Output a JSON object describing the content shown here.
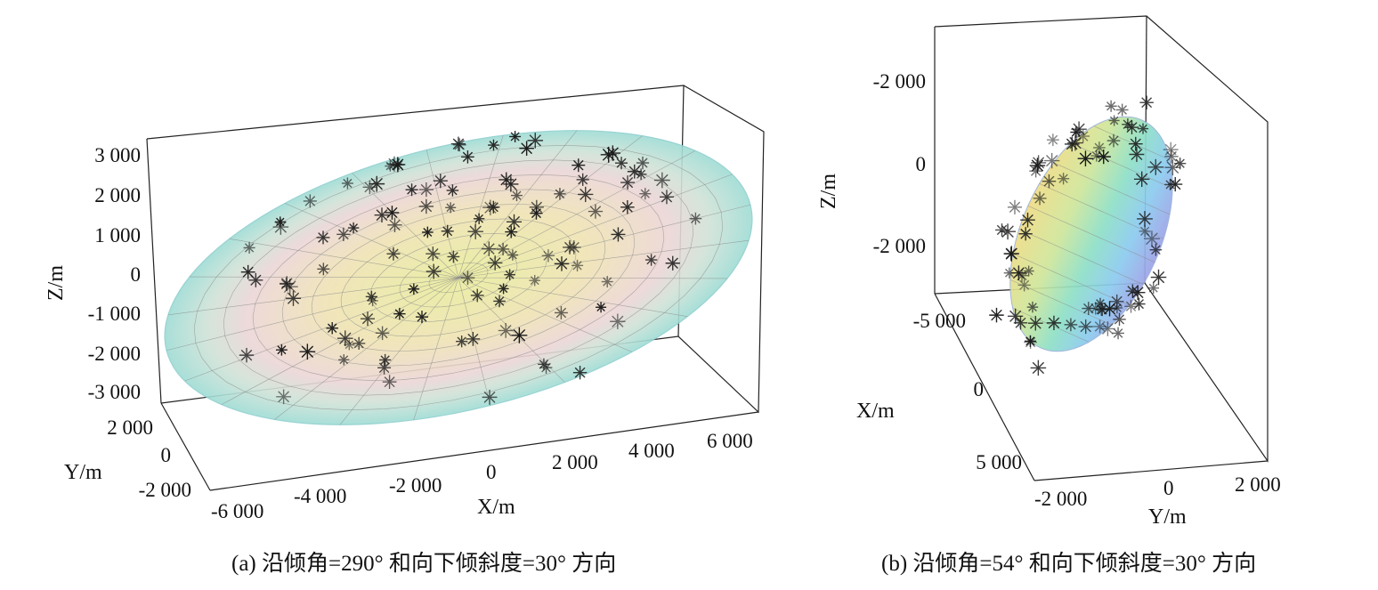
{
  "chart_data": [
    {
      "type": "scatter",
      "xlabel": "X/m",
      "ylabel": "Y/m",
      "zlabel": "Z/m",
      "x_ticks": [
        "-6 000",
        "-4 000",
        "-2 000",
        "0",
        "2 000",
        "4 000",
        "6 000"
      ],
      "y_ticks": [
        "2 000",
        "0",
        "-2 000"
      ],
      "z_ticks": [
        "3 000",
        "2 000",
        "1 000",
        "0",
        "-1 000",
        "-2 000",
        "-3 000"
      ],
      "xlim": [
        -6000,
        6000
      ],
      "ylim": [
        -2000,
        2000
      ],
      "zlim": [
        -3000,
        3000
      ],
      "caption": "(a) 沿倾角=290° 和向下倾斜度=30° 方向"
    },
    {
      "type": "scatter",
      "xlabel": "X/m",
      "ylabel": "Y/m",
      "zlabel": "Z/m",
      "z_ticks": [
        "-2 000",
        "0",
        "-2 000"
      ],
      "x_ticks": [
        "-5 000",
        "0",
        "5 000"
      ],
      "y_ticks": [
        "-2 000",
        "0",
        "2 000"
      ],
      "caption": "(b) 沿倾角=54° 和向下倾斜度=30° 方向"
    }
  ]
}
